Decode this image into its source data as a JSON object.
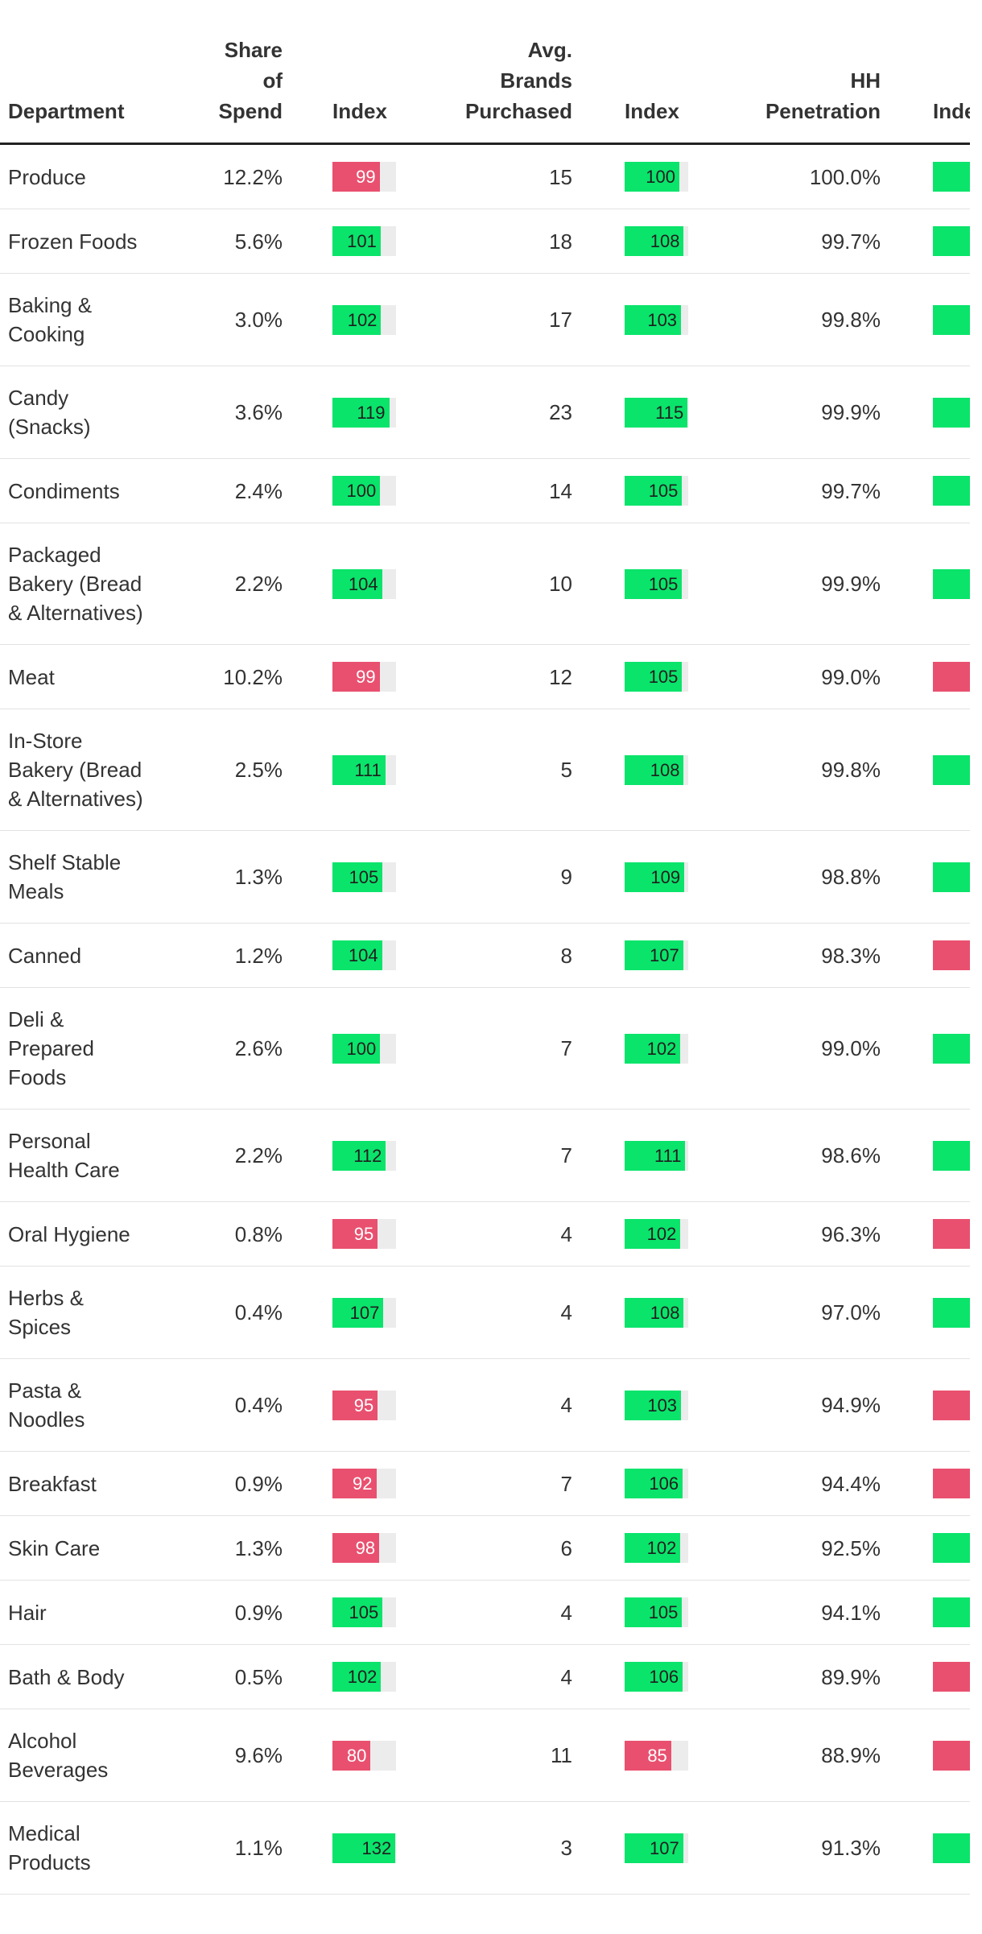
{
  "table": {
    "columns": [
      "Department",
      "Share of Spend",
      "Index",
      "Avg. Brands Purchased",
      "Index",
      "HH Penetration",
      "Index"
    ],
    "tones": {
      "positive": {
        "fill": "#0ae46b",
        "text": "#1e1e1e"
      },
      "negative": {
        "fill": "#e9506f",
        "text": "#ffffff"
      }
    },
    "rows": [
      {
        "department": "Produce",
        "share": "12.2%",
        "share_index": 99,
        "share_index_tone": "negative",
        "brands": 15,
        "brands_index": 100,
        "brands_index_tone": "positive",
        "hh_penetration": "100.0%",
        "hh_index_tone": "positive"
      },
      {
        "department": "Frozen Foods",
        "share": "5.6%",
        "share_index": 101,
        "share_index_tone": "positive",
        "brands": 18,
        "brands_index": 108,
        "brands_index_tone": "positive",
        "hh_penetration": "99.7%",
        "hh_index_tone": "positive"
      },
      {
        "department": "Baking & Cooking",
        "share": "3.0%",
        "share_index": 102,
        "share_index_tone": "positive",
        "brands": 17,
        "brands_index": 103,
        "brands_index_tone": "positive",
        "hh_penetration": "99.8%",
        "hh_index_tone": "positive"
      },
      {
        "department": "Candy (Snacks)",
        "share": "3.6%",
        "share_index": 119,
        "share_index_tone": "positive",
        "brands": 23,
        "brands_index": 115,
        "brands_index_tone": "positive",
        "hh_penetration": "99.9%",
        "hh_index_tone": "positive"
      },
      {
        "department": "Condiments",
        "share": "2.4%",
        "share_index": 100,
        "share_index_tone": "positive",
        "brands": 14,
        "brands_index": 105,
        "brands_index_tone": "positive",
        "hh_penetration": "99.7%",
        "hh_index_tone": "positive"
      },
      {
        "department": "Packaged Bakery (Bread & Alternatives)",
        "share": "2.2%",
        "share_index": 104,
        "share_index_tone": "positive",
        "brands": 10,
        "brands_index": 105,
        "brands_index_tone": "positive",
        "hh_penetration": "99.9%",
        "hh_index_tone": "positive"
      },
      {
        "department": "Meat",
        "share": "10.2%",
        "share_index": 99,
        "share_index_tone": "negative",
        "brands": 12,
        "brands_index": 105,
        "brands_index_tone": "positive",
        "hh_penetration": "99.0%",
        "hh_index_tone": "negative"
      },
      {
        "department": "In-Store Bakery (Bread & Alternatives)",
        "share": "2.5%",
        "share_index": 111,
        "share_index_tone": "positive",
        "brands": 5,
        "brands_index": 108,
        "brands_index_tone": "positive",
        "hh_penetration": "99.8%",
        "hh_index_tone": "positive"
      },
      {
        "department": "Shelf Stable Meals",
        "share": "1.3%",
        "share_index": 105,
        "share_index_tone": "positive",
        "brands": 9,
        "brands_index": 109,
        "brands_index_tone": "positive",
        "hh_penetration": "98.8%",
        "hh_index_tone": "positive"
      },
      {
        "department": "Canned",
        "share": "1.2%",
        "share_index": 104,
        "share_index_tone": "positive",
        "brands": 8,
        "brands_index": 107,
        "brands_index_tone": "positive",
        "hh_penetration": "98.3%",
        "hh_index_tone": "negative"
      },
      {
        "department": "Deli & Prepared Foods",
        "share": "2.6%",
        "share_index": 100,
        "share_index_tone": "positive",
        "brands": 7,
        "brands_index": 102,
        "brands_index_tone": "positive",
        "hh_penetration": "99.0%",
        "hh_index_tone": "positive"
      },
      {
        "department": "Personal Health Care",
        "share": "2.2%",
        "share_index": 112,
        "share_index_tone": "positive",
        "brands": 7,
        "brands_index": 111,
        "brands_index_tone": "positive",
        "hh_penetration": "98.6%",
        "hh_index_tone": "positive"
      },
      {
        "department": "Oral Hygiene",
        "share": "0.8%",
        "share_index": 95,
        "share_index_tone": "negative",
        "brands": 4,
        "brands_index": 102,
        "brands_index_tone": "positive",
        "hh_penetration": "96.3%",
        "hh_index_tone": "negative"
      },
      {
        "department": "Herbs & Spices",
        "share": "0.4%",
        "share_index": 107,
        "share_index_tone": "positive",
        "brands": 4,
        "brands_index": 108,
        "brands_index_tone": "positive",
        "hh_penetration": "97.0%",
        "hh_index_tone": "positive"
      },
      {
        "department": "Pasta & Noodles",
        "share": "0.4%",
        "share_index": 95,
        "share_index_tone": "negative",
        "brands": 4,
        "brands_index": 103,
        "brands_index_tone": "positive",
        "hh_penetration": "94.9%",
        "hh_index_tone": "negative"
      },
      {
        "department": "Breakfast",
        "share": "0.9%",
        "share_index": 92,
        "share_index_tone": "negative",
        "brands": 7,
        "brands_index": 106,
        "brands_index_tone": "positive",
        "hh_penetration": "94.4%",
        "hh_index_tone": "negative"
      },
      {
        "department": "Skin Care",
        "share": "1.3%",
        "share_index": 98,
        "share_index_tone": "negative",
        "brands": 6,
        "brands_index": 102,
        "brands_index_tone": "positive",
        "hh_penetration": "92.5%",
        "hh_index_tone": "positive"
      },
      {
        "department": "Hair",
        "share": "0.9%",
        "share_index": 105,
        "share_index_tone": "positive",
        "brands": 4,
        "brands_index": 105,
        "brands_index_tone": "positive",
        "hh_penetration": "94.1%",
        "hh_index_tone": "positive"
      },
      {
        "department": "Bath & Body",
        "share": "0.5%",
        "share_index": 102,
        "share_index_tone": "positive",
        "brands": 4,
        "brands_index": 106,
        "brands_index_tone": "positive",
        "hh_penetration": "89.9%",
        "hh_index_tone": "negative"
      },
      {
        "department": "Alcohol Beverages",
        "share": "9.6%",
        "share_index": 80,
        "share_index_tone": "negative",
        "brands": 11,
        "brands_index": 85,
        "brands_index_tone": "negative",
        "hh_penetration": "88.9%",
        "hh_index_tone": "negative"
      },
      {
        "department": "Medical Products",
        "share": "1.1%",
        "share_index": 132,
        "share_index_tone": "positive",
        "brands": 3,
        "brands_index": 107,
        "brands_index_tone": "positive",
        "hh_penetration": "91.3%",
        "hh_index_tone": "positive"
      }
    ]
  }
}
